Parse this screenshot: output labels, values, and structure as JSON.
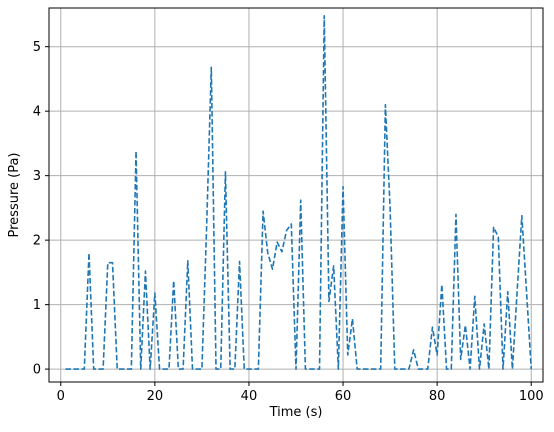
{
  "chart_data": {
    "type": "line",
    "xlabel": "Time (s)",
    "ylabel": "Pressure (Pa)",
    "xlim": [
      -2.5,
      102.5
    ],
    "ylim": [
      -0.2,
      5.6
    ],
    "xticks": [
      0,
      20,
      40,
      60,
      80,
      100
    ],
    "yticks": [
      0,
      1,
      2,
      3,
      4,
      5
    ],
    "grid": true,
    "line_style": "dashed",
    "colors": {
      "series": "#1f77b4",
      "grid": "#b0b0b0",
      "axes": "#000000"
    },
    "series": [
      {
        "x": [
          1,
          2,
          3,
          4,
          5,
          6,
          7,
          8,
          9,
          10,
          11,
          12,
          13,
          14,
          15,
          16,
          17,
          18,
          19,
          20,
          21,
          22,
          23,
          24,
          25,
          26,
          27,
          28,
          29,
          30,
          31,
          32,
          33,
          34,
          35,
          36,
          37,
          38,
          39,
          40,
          41,
          42,
          43,
          44,
          45,
          46,
          47,
          48,
          49,
          50,
          51,
          52,
          53,
          54,
          55,
          56,
          57,
          58,
          59,
          60,
          61,
          62,
          63,
          64,
          65,
          66,
          67,
          68,
          69,
          70,
          71,
          72,
          73,
          74,
          75,
          76,
          77,
          78,
          79,
          80,
          81,
          82,
          83,
          84,
          85,
          86,
          87,
          88,
          89,
          90,
          91,
          92,
          93,
          94,
          95,
          96,
          97,
          98,
          99,
          100
        ],
        "y": [
          0,
          0,
          0,
          0,
          0,
          1.8,
          0,
          0,
          0,
          1.65,
          1.65,
          0,
          0,
          0,
          0,
          3.38,
          0,
          1.52,
          0,
          1.18,
          0,
          0,
          0,
          1.37,
          0,
          0,
          1.68,
          0,
          0,
          0,
          2.2,
          4.68,
          0,
          0,
          3.06,
          0,
          0,
          1.67,
          0,
          0,
          0,
          0,
          2.45,
          1.8,
          1.55,
          1.97,
          1.82,
          2.15,
          2.25,
          0,
          2.62,
          0,
          0,
          0,
          0,
          5.48,
          1.05,
          1.6,
          0,
          2.83,
          0.22,
          0.78,
          0,
          0,
          0,
          0,
          0,
          0,
          4.1,
          2.5,
          0,
          0,
          0,
          0,
          0.3,
          0,
          0,
          0,
          0.65,
          0.22,
          1.31,
          0,
          0,
          2.4,
          0.15,
          0.68,
          0,
          1.13,
          0,
          0.7,
          0,
          2.2,
          2.05,
          0,
          1.2,
          0,
          1.2,
          2.38,
          1.2,
          0
        ]
      }
    ]
  }
}
